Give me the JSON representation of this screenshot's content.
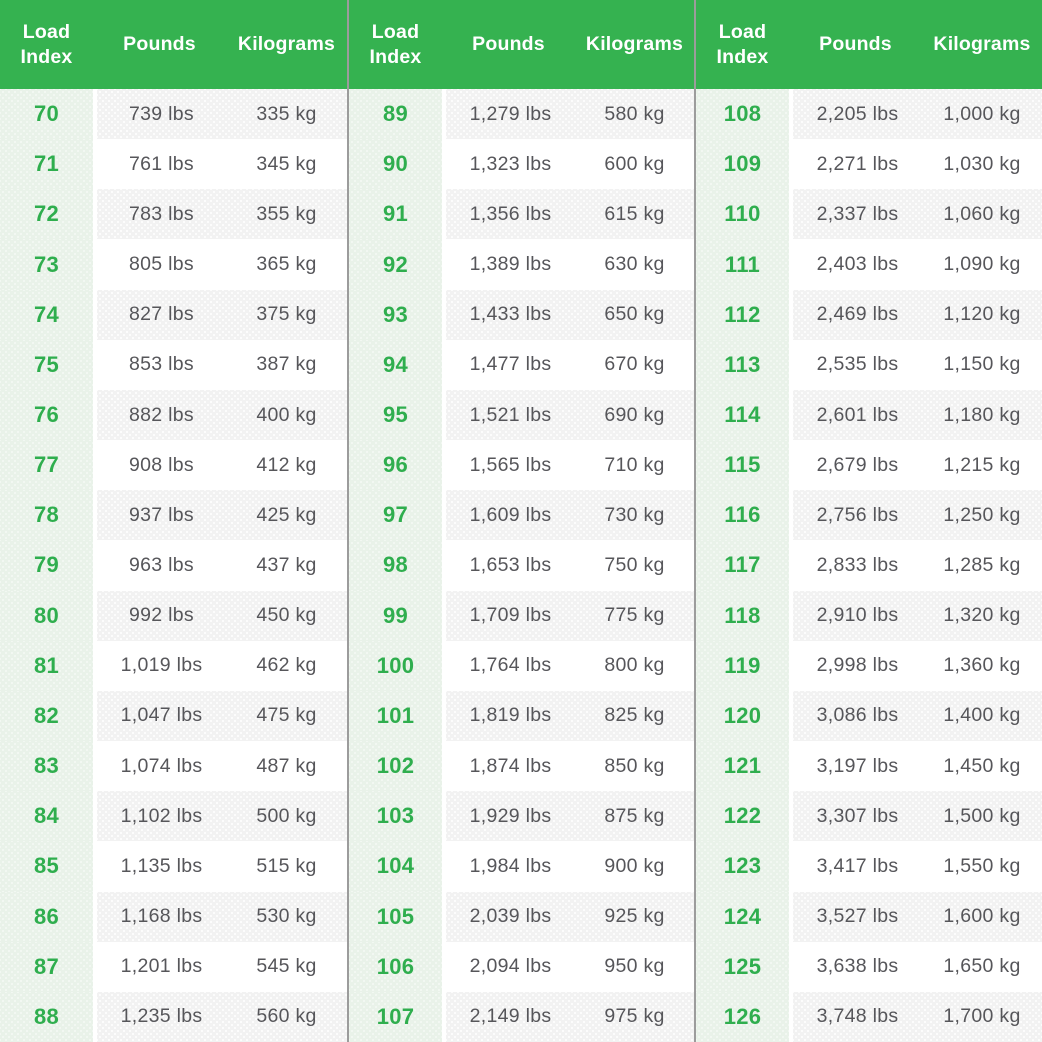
{
  "headers": {
    "load_index": "Load Index",
    "pounds": "Pounds",
    "kilograms": "Kilograms"
  },
  "colors": {
    "header_green": "#35b250",
    "index_number_green": "#2fae4e",
    "index_column_bg": "#e9f2e9",
    "stripe_bg": "#f2f2f2",
    "data_text": "#56565a",
    "divider": "#9c9c9c"
  },
  "chart_data": {
    "type": "table",
    "columns": [
      "Load Index",
      "Pounds",
      "Kilograms"
    ],
    "sections_count": 3,
    "rows_per_section": 19,
    "rows": [
      [
        "70",
        "739 lbs",
        "335 kg"
      ],
      [
        "71",
        "761 lbs",
        "345 kg"
      ],
      [
        "72",
        "783 lbs",
        "355 kg"
      ],
      [
        "73",
        "805 lbs",
        "365 kg"
      ],
      [
        "74",
        "827 lbs",
        "375 kg"
      ],
      [
        "75",
        "853 lbs",
        "387 kg"
      ],
      [
        "76",
        "882 lbs",
        "400 kg"
      ],
      [
        "77",
        "908 lbs",
        "412 kg"
      ],
      [
        "78",
        "937 lbs",
        "425 kg"
      ],
      [
        "79",
        "963 lbs",
        "437 kg"
      ],
      [
        "80",
        "992 lbs",
        "450 kg"
      ],
      [
        "81",
        "1,019 lbs",
        "462 kg"
      ],
      [
        "82",
        "1,047 lbs",
        "475 kg"
      ],
      [
        "83",
        "1,074 lbs",
        "487 kg"
      ],
      [
        "84",
        "1,102 lbs",
        "500 kg"
      ],
      [
        "85",
        "1,135 lbs",
        "515 kg"
      ],
      [
        "86",
        "1,168 lbs",
        "530 kg"
      ],
      [
        "87",
        "1,201 lbs",
        "545 kg"
      ],
      [
        "88",
        "1,235 lbs",
        "560 kg"
      ],
      [
        "89",
        "1,279 lbs",
        "580 kg"
      ],
      [
        "90",
        "1,323 lbs",
        "600 kg"
      ],
      [
        "91",
        "1,356 lbs",
        "615 kg"
      ],
      [
        "92",
        "1,389 lbs",
        "630 kg"
      ],
      [
        "93",
        "1,433 lbs",
        "650 kg"
      ],
      [
        "94",
        "1,477 lbs",
        "670 kg"
      ],
      [
        "95",
        "1,521 lbs",
        "690 kg"
      ],
      [
        "96",
        "1,565 lbs",
        "710 kg"
      ],
      [
        "97",
        "1,609 lbs",
        "730 kg"
      ],
      [
        "98",
        "1,653 lbs",
        "750 kg"
      ],
      [
        "99",
        "1,709 lbs",
        "775 kg"
      ],
      [
        "100",
        "1,764 lbs",
        "800 kg"
      ],
      [
        "101",
        "1,819 lbs",
        "825 kg"
      ],
      [
        "102",
        "1,874 lbs",
        "850 kg"
      ],
      [
        "103",
        "1,929 lbs",
        "875 kg"
      ],
      [
        "104",
        "1,984 lbs",
        "900 kg"
      ],
      [
        "105",
        "2,039 lbs",
        "925 kg"
      ],
      [
        "106",
        "2,094 lbs",
        "950 kg"
      ],
      [
        "107",
        "2,149 lbs",
        "975 kg"
      ],
      [
        "108",
        "2,205 lbs",
        "1,000 kg"
      ],
      [
        "109",
        "2,271 lbs",
        "1,030 kg"
      ],
      [
        "110",
        "2,337 lbs",
        "1,060 kg"
      ],
      [
        "111",
        "2,403 lbs",
        "1,090 kg"
      ],
      [
        "112",
        "2,469 lbs",
        "1,120 kg"
      ],
      [
        "113",
        "2,535 lbs",
        "1,150 kg"
      ],
      [
        "114",
        "2,601 lbs",
        "1,180 kg"
      ],
      [
        "115",
        "2,679 lbs",
        "1,215 kg"
      ],
      [
        "116",
        "2,756 lbs",
        "1,250 kg"
      ],
      [
        "117",
        "2,833 lbs",
        "1,285 kg"
      ],
      [
        "118",
        "2,910 lbs",
        "1,320 kg"
      ],
      [
        "119",
        "2,998 lbs",
        "1,360 kg"
      ],
      [
        "120",
        "3,086 lbs",
        "1,400 kg"
      ],
      [
        "121",
        "3,197 lbs",
        "1,450 kg"
      ],
      [
        "122",
        "3,307 lbs",
        "1,500 kg"
      ],
      [
        "123",
        "3,417 lbs",
        "1,550 kg"
      ],
      [
        "124",
        "3,527 lbs",
        "1,600 kg"
      ],
      [
        "125",
        "3,638 lbs",
        "1,650 kg"
      ],
      [
        "126",
        "3,748 lbs",
        "1,700 kg"
      ]
    ]
  }
}
